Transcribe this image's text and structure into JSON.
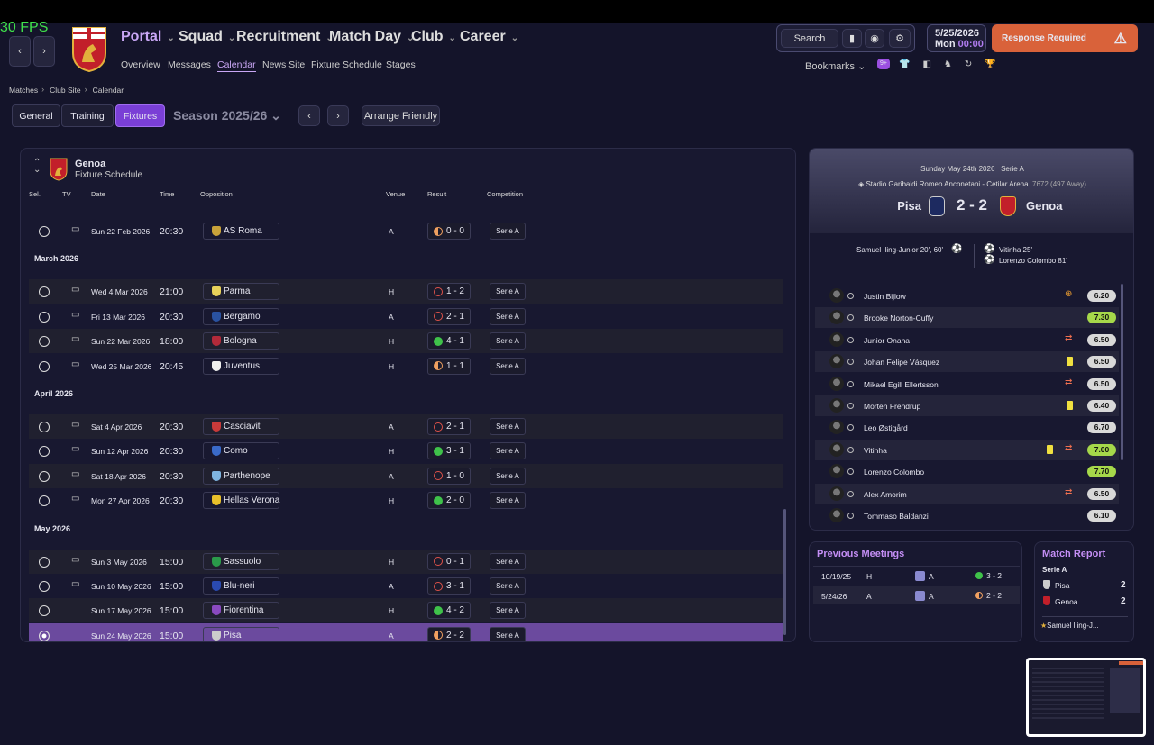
{
  "fps": "30 FPS",
  "nav": {
    "items": [
      "Portal",
      "Squad",
      "Recruitment",
      "Match Day",
      "Club",
      "Career"
    ],
    "active": 0,
    "subitems": [
      "Overview",
      "Messages",
      "Calendar",
      "News Site",
      "Fixture Schedule",
      "Stages"
    ],
    "active_sub": 2
  },
  "toolbar": {
    "search": "Search",
    "date": "5/25/2026",
    "day": "Mon",
    "time": "00:00",
    "alert": "Response Required",
    "bookmarks": "Bookmarks",
    "badge": "9+"
  },
  "breadcrumb": [
    "Matches",
    "Club Site",
    "Calendar"
  ],
  "tabs": {
    "items": [
      "General",
      "Training",
      "Fixtures"
    ],
    "active": 2,
    "season": "Season 2025/26",
    "friendly": "Arrange Friendly"
  },
  "schedule": {
    "team": "Genoa",
    "subtitle": "Fixture Schedule",
    "columns": [
      "Sel.",
      "TV",
      "Date",
      "Time",
      "Opposition",
      "Venue",
      "Result",
      "Competition"
    ],
    "groups": [
      {
        "rows": [
          {
            "date": "Sun 22 Feb 2026",
            "time": "20:30",
            "opponent": "AS Roma",
            "venue": "A",
            "result": "0 - 0",
            "competition": "Serie A",
            "outcome": "draw",
            "tv": true
          }
        ]
      },
      {
        "month": "March 2026",
        "rows": [
          {
            "date": "Wed 4 Mar 2026",
            "time": "21:00",
            "opponent": "Parma",
            "venue": "H",
            "result": "1 - 2",
            "competition": "Serie A",
            "outcome": "loss",
            "tv": true
          },
          {
            "date": "Fri 13 Mar 2026",
            "time": "20:30",
            "opponent": "Bergamo",
            "venue": "A",
            "result": "2 - 1",
            "competition": "Serie A",
            "outcome": "loss",
            "tv": true
          },
          {
            "date": "Sun 22 Mar 2026",
            "time": "18:00",
            "opponent": "Bologna",
            "venue": "H",
            "result": "4 - 1",
            "competition": "Serie A",
            "outcome": "win",
            "tv": true
          },
          {
            "date": "Wed 25 Mar 2026",
            "time": "20:45",
            "opponent": "Juventus",
            "venue": "H",
            "result": "1 - 1",
            "competition": "Serie A",
            "outcome": "draw",
            "tv": true
          }
        ]
      },
      {
        "month": "April 2026",
        "rows": [
          {
            "date": "Sat 4 Apr 2026",
            "time": "20:30",
            "opponent": "Casciavit",
            "venue": "A",
            "result": "2 - 1",
            "competition": "Serie A",
            "outcome": "loss",
            "tv": true
          },
          {
            "date": "Sun 12 Apr 2026",
            "time": "20:30",
            "opponent": "Como",
            "venue": "H",
            "result": "3 - 1",
            "competition": "Serie A",
            "outcome": "win",
            "tv": true
          },
          {
            "date": "Sat 18 Apr 2026",
            "time": "20:30",
            "opponent": "Parthenope",
            "venue": "A",
            "result": "1 - 0",
            "competition": "Serie A",
            "outcome": "loss",
            "tv": true
          },
          {
            "date": "Mon 27 Apr 2026",
            "time": "20:30",
            "opponent": "Hellas Verona",
            "venue": "H",
            "result": "2 - 0",
            "competition": "Serie A",
            "outcome": "win",
            "tv": true
          }
        ]
      },
      {
        "month": "May 2026",
        "rows": [
          {
            "date": "Sun 3 May 2026",
            "time": "15:00",
            "opponent": "Sassuolo",
            "venue": "H",
            "result": "0 - 1",
            "competition": "Serie A",
            "outcome": "loss",
            "tv": true
          },
          {
            "date": "Sun 10 May 2026",
            "time": "15:00",
            "opponent": "Blu-neri",
            "venue": "A",
            "result": "3 - 1",
            "competition": "Serie A",
            "outcome": "loss",
            "tv": true
          },
          {
            "date": "Sun 17 May 2026",
            "time": "15:00",
            "opponent": "Fiorentina",
            "venue": "H",
            "result": "4 - 2",
            "competition": "Serie A",
            "outcome": "win",
            "tv": false
          },
          {
            "date": "Sun 24 May 2026",
            "time": "15:00",
            "opponent": "Pisa",
            "venue": "A",
            "result": "2 - 2",
            "competition": "Serie A",
            "outcome": "draw",
            "tv": false,
            "selected": true
          }
        ]
      }
    ]
  },
  "match": {
    "date": "Sunday May 24th 2026",
    "competition": "Serie A",
    "stadium": "Stadio Garibaldi Romeo Anconetani - Cetilar Arena",
    "attendance": "7672 (497 Away)",
    "home": "Pisa",
    "score": "2 - 2",
    "away": "Genoa",
    "home_scorers": [
      "Samuel Iling-Junior 20', 60'"
    ],
    "away_scorers": [
      "Vitinha 25'",
      "Lorenzo Colombo 81'"
    ]
  },
  "lineup": [
    {
      "name": "Justin Bijlow",
      "rating": "6.20",
      "events": [
        "plus"
      ]
    },
    {
      "name": "Brooke Norton-Cuffy",
      "rating": "7.30",
      "highlight": true
    },
    {
      "name": "Junior Onana",
      "rating": "6.50",
      "events": [
        "sub"
      ]
    },
    {
      "name": "Johan Felipe Vásquez",
      "rating": "6.50",
      "events": [
        "yellow"
      ]
    },
    {
      "name": "Mikael Egill Ellertsson",
      "rating": "6.50",
      "events": [
        "sub"
      ]
    },
    {
      "name": "Morten Frendrup",
      "rating": "6.40",
      "events": [
        "yellow"
      ]
    },
    {
      "name": "Leo Østigård",
      "rating": "6.70"
    },
    {
      "name": "Vitinha",
      "rating": "7.00",
      "highlight": true,
      "events": [
        "yellow",
        "sub"
      ]
    },
    {
      "name": "Lorenzo Colombo",
      "rating": "7.70",
      "highlight": true
    },
    {
      "name": "Alex Amorim",
      "rating": "6.50",
      "events": [
        "sub"
      ]
    },
    {
      "name": "Tommaso Baldanzi",
      "rating": "6.10"
    }
  ],
  "previous": {
    "title": "Previous Meetings",
    "rows": [
      {
        "date": "10/19/25",
        "venue": "H",
        "side": "A",
        "result": "3 - 2",
        "outcome": "win"
      },
      {
        "date": "5/24/26",
        "venue": "A",
        "side": "A",
        "result": "2 - 2",
        "outcome": "draw"
      }
    ]
  },
  "report": {
    "title": "Match Report",
    "competition": "Serie A",
    "teams": [
      {
        "name": "Pisa",
        "goals": 2
      },
      {
        "name": "Genoa",
        "goals": 2
      }
    ],
    "motm": "Samuel Iling-J..."
  }
}
